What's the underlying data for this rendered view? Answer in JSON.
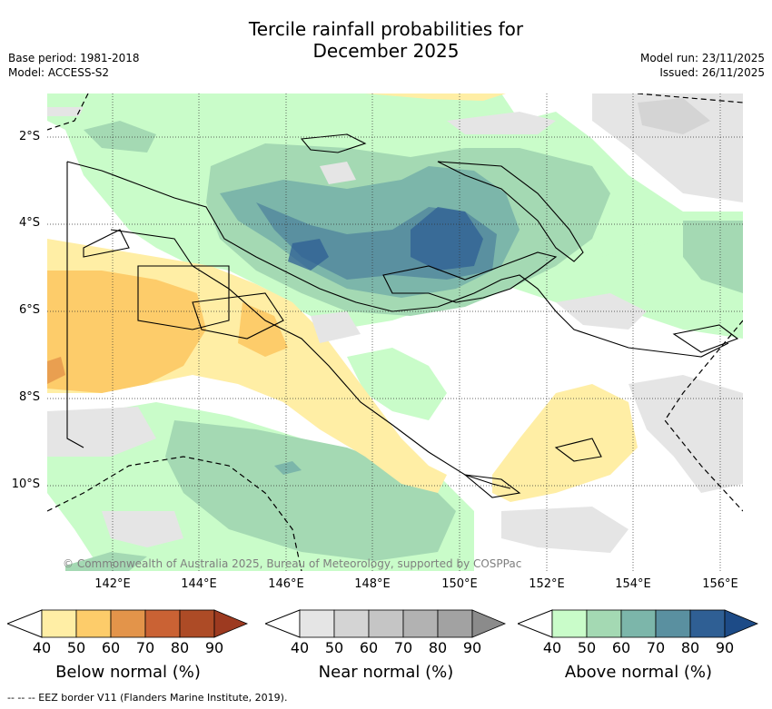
{
  "title": {
    "line1": "Tercile rainfall probabilities for",
    "line2": "December 2025"
  },
  "meta": {
    "base_period": "Base period: 1981-2018",
    "model": "Model: ACCESS-S2",
    "model_run": "Model run: 23/11/2025",
    "issued": "Issued: 26/11/2025"
  },
  "map": {
    "lat_labels": [
      "2°S",
      "4°S",
      "6°S",
      "8°S",
      "10°S"
    ],
    "lon_labels": [
      "142°E",
      "144°E",
      "146°E",
      "148°E",
      "150°E",
      "152°E",
      "154°E",
      "156°E"
    ],
    "copyright": "© Commonwealth of Australia 2025, Bureau of Meteorology, supported by COSPPac"
  },
  "colorbars": [
    {
      "title": "Below normal (%)",
      "ticks": [
        "40",
        "50",
        "60",
        "70",
        "80",
        "90"
      ],
      "colors": [
        "#ffeea5",
        "#fdcc6a",
        "#e3944a",
        "#ca6234",
        "#ad4b26",
        "#9d3a20"
      ]
    },
    {
      "title": "Near normal (%)",
      "ticks": [
        "40",
        "50",
        "60",
        "70",
        "80",
        "90"
      ],
      "colors": [
        "#e5e5e5",
        "#d4d4d4",
        "#c5c5c5",
        "#b2b2b2",
        "#a2a2a2",
        "#8b8b8b"
      ]
    },
    {
      "title": "Above normal (%)",
      "ticks": [
        "40",
        "50",
        "60",
        "70",
        "80",
        "90"
      ],
      "colors": [
        "#c9fcc9",
        "#a4d9b3",
        "#7cb6aa",
        "#5a90a0",
        "#2f5f94",
        "#1d4b87"
      ]
    }
  ],
  "legend": {
    "eez": "-- -- -- EEZ border V11 (Flanders Marine Institute, 2019)."
  }
}
